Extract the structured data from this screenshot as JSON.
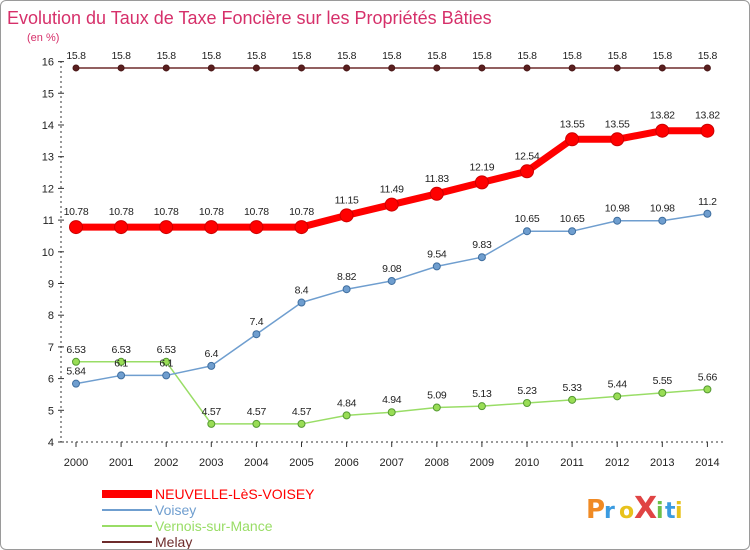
{
  "chart_data": {
    "type": "line",
    "title": "Evolution du Taux de Taxe Foncière sur les Propriétés Bâties",
    "unit_label": "(en %)",
    "x": [
      "2000",
      "2001",
      "2002",
      "2003",
      "2004",
      "2005",
      "2006",
      "2007",
      "2008",
      "2009",
      "2010",
      "2011",
      "2012",
      "2013",
      "2014"
    ],
    "y_ticks": [
      "4",
      "5",
      "6",
      "7",
      "8",
      "9",
      "10",
      "11",
      "12",
      "13",
      "14",
      "15",
      "16"
    ],
    "ylim": [
      4,
      16
    ],
    "grid": false,
    "legend_position": "bottom-left",
    "series": [
      {
        "name": "Melay",
        "color": "#6e2c2c",
        "values": [
          15.8,
          15.8,
          15.8,
          15.8,
          15.8,
          15.8,
          15.8,
          15.8,
          15.8,
          15.8,
          15.8,
          15.8,
          15.8,
          15.8,
          15.8
        ],
        "labels": [
          "15.8",
          "15.8",
          "15.8",
          "15.8",
          "15.8",
          "15.8",
          "15.8",
          "15.8",
          "15.8",
          "15.8",
          "15.8",
          "15.8",
          "15.8",
          "15.8",
          "15.8"
        ]
      },
      {
        "name": "Vernois-sur-Mance",
        "color": "#99dd66",
        "values": [
          6.53,
          6.53,
          6.53,
          4.57,
          4.57,
          4.57,
          4.84,
          4.94,
          5.09,
          5.13,
          5.23,
          5.33,
          5.44,
          5.55,
          5.66
        ],
        "labels": [
          "6.53",
          "6.53",
          "6.53",
          "4.57",
          "4.57",
          "4.57",
          "4.84",
          "4.94",
          "5.09",
          "5.13",
          "5.23",
          "5.33",
          "5.44",
          "5.55",
          "5.66"
        ]
      },
      {
        "name": "Voisey",
        "color": "#6f9ecf",
        "values": [
          5.84,
          6.1,
          6.1,
          6.4,
          7.4,
          8.4,
          8.82,
          9.08,
          9.54,
          9.83,
          10.65,
          10.65,
          10.98,
          10.98,
          11.2
        ],
        "labels": [
          "5.84",
          "6.1",
          "6.1",
          "6.4",
          "7.4",
          "8.4",
          "8.82",
          "9.08",
          "9.54",
          "9.83",
          "10.65",
          "10.65",
          "10.98",
          "10.98",
          "11.2"
        ]
      },
      {
        "name": "NEUVELLE-LèS-VOISEY",
        "color": "#ff0000",
        "values": [
          10.78,
          10.78,
          10.78,
          10.78,
          10.78,
          10.78,
          11.15,
          11.49,
          11.83,
          12.19,
          12.54,
          13.55,
          13.55,
          13.82,
          13.82
        ],
        "labels": [
          "10.78",
          "10.78",
          "10.78",
          "10.78",
          "10.78",
          "10.78",
          "11.15",
          "11.49",
          "11.83",
          "12.19",
          "12.54",
          "13.55",
          "13.55",
          "13.82",
          "13.82"
        ]
      }
    ]
  },
  "legend": {
    "items": [
      {
        "label": "NEUVELLE-LèS-VOISEY",
        "color": "#ff0000"
      },
      {
        "label": "Voisey",
        "color": "#6f9ecf"
      },
      {
        "label": "Vernois-sur-Mance",
        "color": "#99dd66"
      },
      {
        "label": "Melay",
        "color": "#6e2c2c"
      }
    ]
  },
  "logo": {
    "text": "ProXiti"
  }
}
